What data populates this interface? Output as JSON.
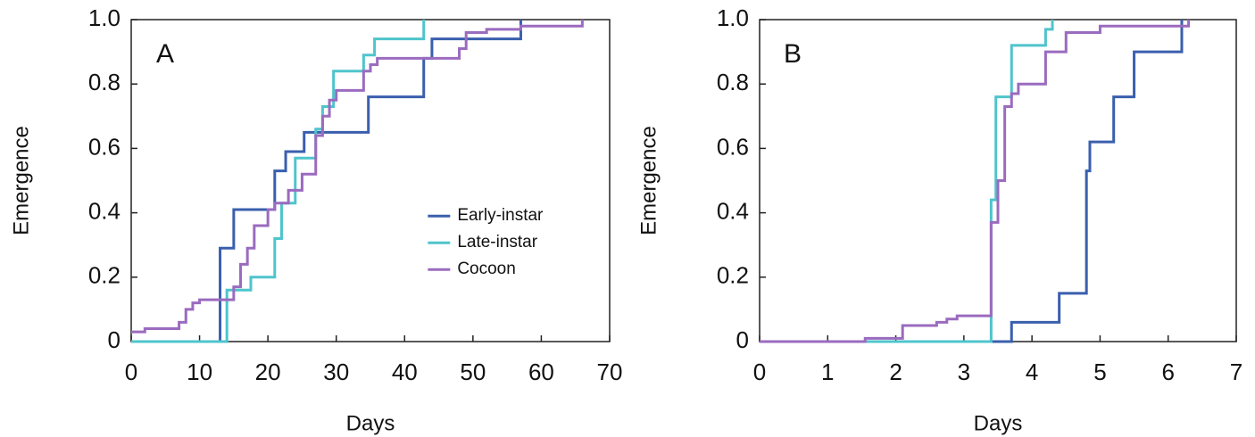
{
  "chart_data": [
    {
      "type": "step",
      "annotation": "A",
      "x_label": "Days",
      "y_label": "Emergence",
      "xlim": [
        0,
        70
      ],
      "xticks": [
        0,
        10,
        20,
        30,
        40,
        50,
        60,
        70
      ],
      "ylim": [
        0,
        1
      ],
      "yticks": [
        0,
        0.2,
        0.4,
        0.6,
        0.8,
        {
          "value": 1,
          "label": "1.0"
        }
      ],
      "legend": "center-right",
      "series": [
        {
          "name": "Early-instar",
          "color": "#3a5fad",
          "x": [
            0,
            13,
            15,
            21,
            22.6,
            25.3,
            34.7,
            42.8,
            44,
            57
          ],
          "values": [
            0,
            0.29,
            0.41,
            0.53,
            0.59,
            0.65,
            0.76,
            0.88,
            0.94,
            1.0
          ]
        },
        {
          "name": "Late-instar",
          "color": "#4fc4cc",
          "x": [
            0,
            14,
            17.5,
            21,
            22,
            24,
            27,
            28,
            29.6,
            34,
            35.6,
            42.8
          ],
          "values": [
            0,
            0.16,
            0.2,
            0.32,
            0.43,
            0.57,
            0.66,
            0.73,
            0.84,
            0.89,
            0.94,
            1.0
          ]
        },
        {
          "name": "Cocoon",
          "color": "#9b6bbf",
          "x": [
            0,
            2,
            7,
            8,
            9,
            10,
            15,
            16,
            17,
            18,
            20,
            21,
            23,
            25,
            27,
            28,
            29,
            30,
            34,
            35,
            36,
            48,
            49,
            52,
            57,
            66
          ],
          "values": [
            0.03,
            0.04,
            0.06,
            0.1,
            0.12,
            0.13,
            0.17,
            0.24,
            0.29,
            0.36,
            0.41,
            0.43,
            0.47,
            0.52,
            0.64,
            0.7,
            0.75,
            0.78,
            0.84,
            0.86,
            0.88,
            0.91,
            0.96,
            0.97,
            0.98,
            1.0
          ]
        }
      ]
    },
    {
      "type": "step",
      "annotation": "B",
      "x_label": "Days",
      "y_label": "Emergence",
      "xlim": [
        0,
        7
      ],
      "xticks": [
        0,
        1,
        2,
        3,
        4,
        5,
        6,
        7
      ],
      "ylim": [
        0,
        1
      ],
      "yticks": [
        0,
        0.2,
        0.4,
        0.6,
        0.8,
        {
          "value": 1,
          "label": "1.0"
        }
      ],
      "series": [
        {
          "color": "#3a5fad",
          "x": [
            3.4,
            3.7,
            4.4,
            4.8,
            4.85,
            5.2,
            5.5,
            6.2
          ],
          "values": [
            0,
            0.06,
            0.15,
            0.53,
            0.62,
            0.76,
            0.9,
            1.0
          ]
        },
        {
          "color": "#4fc4cc",
          "x": [
            0,
            3.4,
            3.47,
            3.7,
            4.2,
            4.3
          ],
          "values": [
            0,
            0.44,
            0.76,
            0.92,
            0.97,
            1.0
          ]
        },
        {
          "color": "#9b6bbf",
          "x": [
            0,
            1.55,
            2.1,
            2.6,
            2.75,
            2.9,
            3.4,
            3.5,
            3.6,
            3.7,
            3.8,
            4.2,
            4.5,
            5.0,
            6.3
          ],
          "values": [
            0,
            0.01,
            0.05,
            0.06,
            0.07,
            0.08,
            0.37,
            0.5,
            0.73,
            0.77,
            0.8,
            0.9,
            0.96,
            0.98,
            1.0
          ]
        }
      ]
    }
  ]
}
